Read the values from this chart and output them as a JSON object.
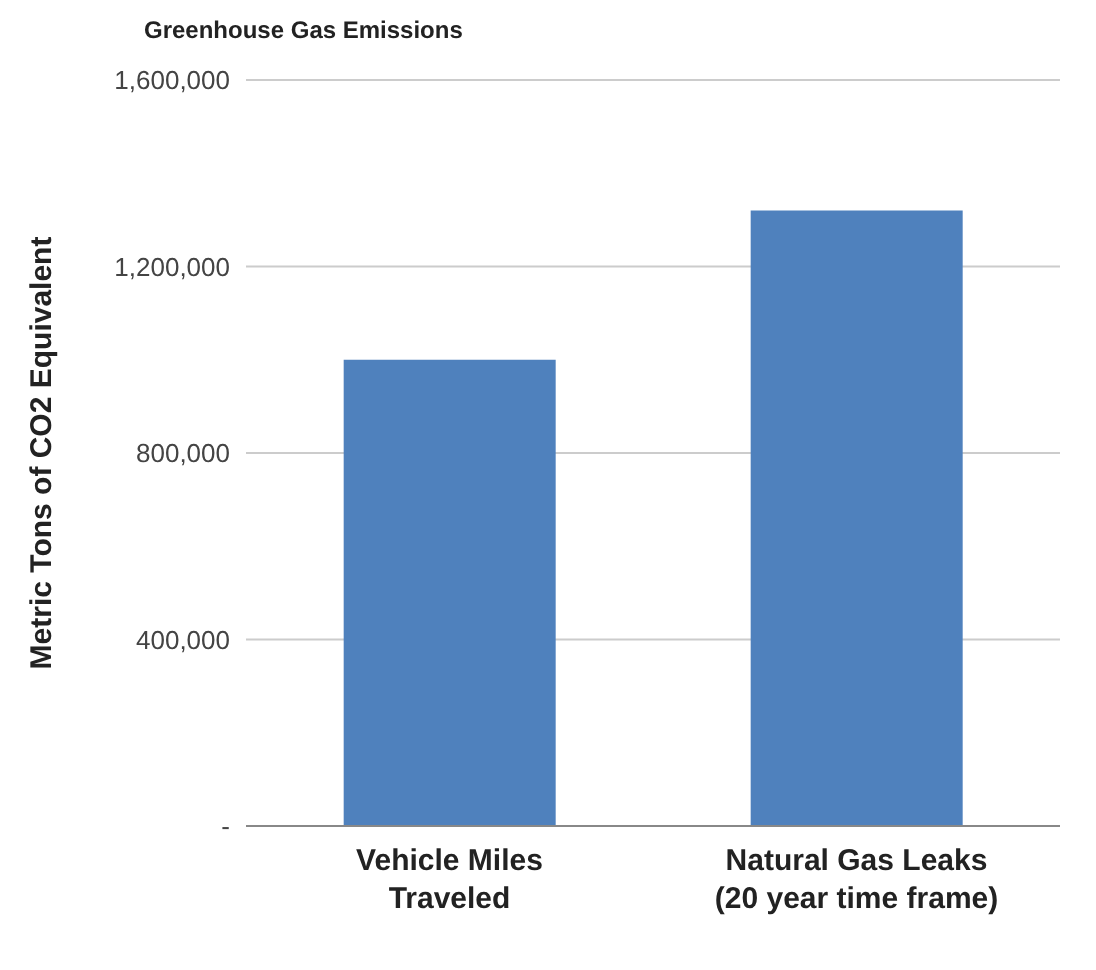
{
  "chart_data": {
    "type": "bar",
    "title": "Greenhouse Gas Emissions",
    "ylabel": "Metric Tons of CO2 Equivalent",
    "categories": [
      "Vehicle Miles Traveled",
      "Natural Gas Leaks (20 year time frame)"
    ],
    "values": [
      1000000,
      1320000
    ],
    "color": "#4f81bd",
    "ylim": [
      0,
      1600000
    ],
    "yticks": [
      {
        "value": 0,
        "label": "-"
      },
      {
        "value": 400000,
        "label": "400,000"
      },
      {
        "value": 800000,
        "label": "800,000"
      },
      {
        "value": 1200000,
        "label": "1,200,000"
      },
      {
        "value": 1600000,
        "label": "1,600,000"
      }
    ],
    "grid": "y"
  }
}
